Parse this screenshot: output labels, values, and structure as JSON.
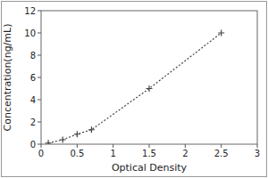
{
  "chart_data": {
    "type": "line",
    "xlabel": "Optical Density",
    "ylabel": "Concentration(ng/mL)",
    "x": [
      0.1,
      0.3,
      0.5,
      0.7,
      1.5,
      2.5
    ],
    "values": [
      0.1,
      0.4,
      0.9,
      1.3,
      5.0,
      10.0
    ],
    "xlim": [
      0,
      3
    ],
    "ylim": [
      0,
      12
    ],
    "xticks": [
      0,
      0.5,
      1,
      1.5,
      2,
      2.5,
      3
    ],
    "yticks": [
      0,
      2,
      4,
      6,
      8,
      10,
      12
    ],
    "color": "#444444",
    "marker": "plus",
    "line_style": "dotted",
    "grid": false
  }
}
